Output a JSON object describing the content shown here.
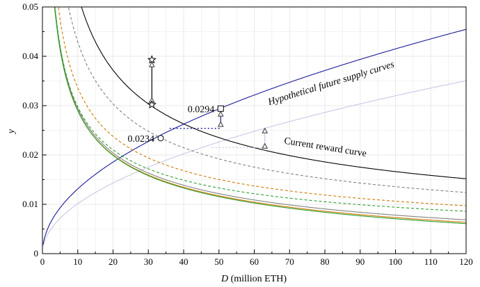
{
  "chart_data": {
    "type": "line",
    "xlabel": {
      "italic": "D",
      "rest": " (million ETH)"
    },
    "ylabel": "y",
    "xlim": [
      0,
      120
    ],
    "ylim": [
      0,
      0.05
    ],
    "x_ticks": [
      0,
      10,
      20,
      30,
      40,
      50,
      60,
      70,
      80,
      90,
      100,
      110,
      120
    ],
    "y_ticks": [
      0,
      0.01,
      0.02,
      0.03,
      0.04,
      0.05
    ],
    "y_tick_labels": [
      "0",
      "0.01",
      "0.02",
      "0.03",
      "0.04",
      "0.05"
    ],
    "grid": true,
    "series": [
      {
        "name": "Current reward curve",
        "role": "reward",
        "k": 0.1663,
        "color": "#000000",
        "dash": false
      },
      {
        "name": "",
        "role": "reward",
        "k": 0.1358,
        "color": "#808080",
        "dash": true
      },
      {
        "name": "",
        "role": "reward",
        "k": 0.1063,
        "color": "#cc7a00",
        "dash": true
      },
      {
        "name": "",
        "role": "reward",
        "k": 0.0941,
        "color": "#2e9e2e",
        "dash": true
      },
      {
        "name": "",
        "role": "reward-modified",
        "a": 0.0913,
        "b": 0.0165,
        "color": "#808080",
        "dash": false
      },
      {
        "name": "",
        "role": "reward-modified",
        "a": 0.0895,
        "b": 0.0203,
        "color": "#cc7a00",
        "dash": false
      },
      {
        "name": "",
        "role": "reward-modified",
        "a": 0.0891,
        "b": 0.0229,
        "color": "#2e9e2e",
        "dash": false
      },
      {
        "name": "",
        "role": "supply",
        "c": 0.00415,
        "color": "#1a1a99",
        "dash": false
      },
      {
        "name": "Hypothetical future supply curves",
        "role": "supply",
        "c": 0.0032,
        "color": "#c8c8e6",
        "dash": false
      }
    ],
    "annotations": [
      {
        "text": "0.0294",
        "x": 50.5,
        "y": 0.0294
      },
      {
        "text": "0.0234",
        "x": 33.5,
        "y": 0.0234
      },
      {
        "text": "Current reward curve",
        "x": 80,
        "y": 0.021
      },
      {
        "text": "Hypothetical future supply curves",
        "x": 82,
        "y": 0.034
      }
    ],
    "markers": {
      "square": {
        "x": 50.5,
        "y": 0.0294
      },
      "circle": {
        "x": 33.5,
        "y": 0.0234
      },
      "stars": [
        {
          "x": 31,
          "y": 0.0393
        },
        {
          "x": 31,
          "y": 0.0302
        }
      ],
      "triangles": [
        {
          "x": 31,
          "y": 0.0383
        },
        {
          "x": 31,
          "y": 0.0311
        },
        {
          "x": 50.5,
          "y": 0.0283
        },
        {
          "x": 50.5,
          "y": 0.0262
        },
        {
          "x": 63,
          "y": 0.0249
        },
        {
          "x": 63,
          "y": 0.0218
        }
      ]
    },
    "arrows": [
      {
        "x": 31,
        "y1": 0.0383,
        "y2": 0.0311,
        "color": "#000000"
      },
      {
        "x": 50.5,
        "y1": 0.0283,
        "y2": 0.0262,
        "color": "#1a1a99"
      },
      {
        "x": 63,
        "y1": 0.0249,
        "y2": 0.0218,
        "color": "#c8c8e6"
      }
    ],
    "dotted_lines": [
      {
        "x1": 36,
        "x2": 50.5,
        "y": 0.0254,
        "color": "#1a1a99"
      },
      {
        "x1": 48,
        "x2": 63,
        "y": 0.0215,
        "color": "#c8c8e6"
      }
    ],
    "colors": {
      "frame": "#000000",
      "grid": "#e8e8e8"
    }
  }
}
